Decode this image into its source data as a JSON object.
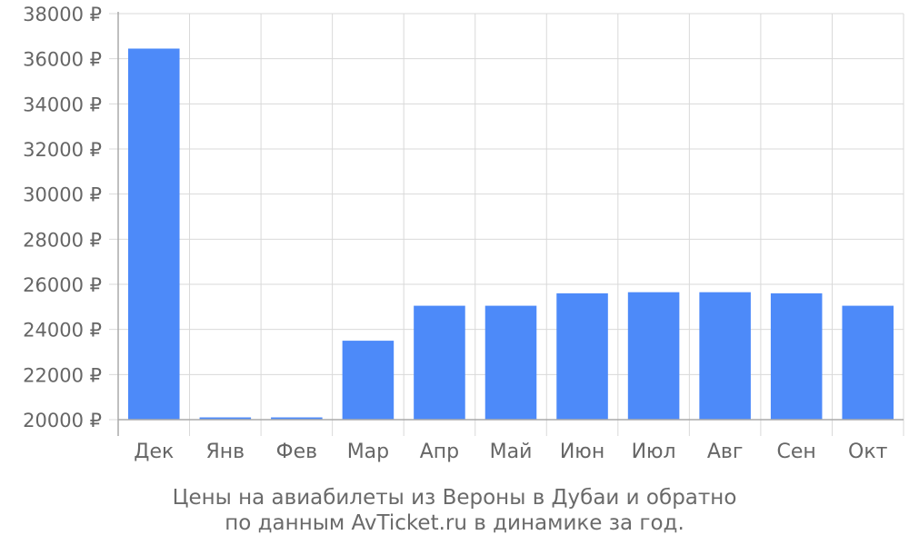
{
  "chart_data": {
    "type": "bar",
    "categories": [
      "Дек",
      "Янв",
      "Фев",
      "Мар",
      "Апр",
      "Май",
      "Июн",
      "Июл",
      "Авг",
      "Сен",
      "Окт"
    ],
    "values": [
      36450,
      20100,
      20100,
      23500,
      25050,
      25050,
      25600,
      25650,
      25650,
      25600,
      25050
    ],
    "ylim": [
      20000,
      38000
    ],
    "yticks": [
      20000,
      22000,
      24000,
      26000,
      28000,
      30000,
      32000,
      34000,
      36000,
      38000
    ],
    "ytick_suffix": " ₽",
    "grid": true,
    "colors": {
      "bar": "#4d8af9",
      "grid": "#d9d9d9",
      "axis": "#aaaaaa",
      "text": "#666666"
    }
  },
  "caption": {
    "line1": "Цены на авиабилеты из Вероны в Дубаи и обратно",
    "line2": "по данным AvTicket.ru в динамике за год."
  }
}
